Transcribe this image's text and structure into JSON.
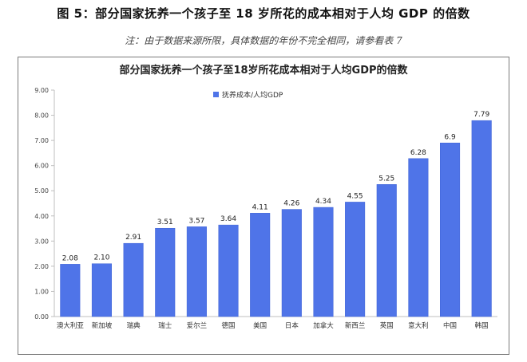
{
  "figure": {
    "title": "图 5：部分国家抚养一个孩子至 18 岁所花的成本相对于人均 GDP 的倍数",
    "note": "注：由于数据来源所限，具体数据的年份不完全相同，请参看表 7"
  },
  "chart_data": {
    "type": "bar",
    "title": "部分国家抚养一个孩子至18岁所花成本相对于人均GDP的倍数",
    "categories": [
      "澳大利亚",
      "新加坡",
      "瑞典",
      "瑞士",
      "爱尔兰",
      "德国",
      "美国",
      "日本",
      "加拿大",
      "新西兰",
      "英国",
      "意大利",
      "中国",
      "韩国"
    ],
    "series": [
      {
        "name": "抚养成本/人均GDP",
        "values": [
          2.08,
          2.1,
          2.91,
          3.51,
          3.57,
          3.64,
          4.11,
          4.26,
          4.34,
          4.55,
          5.25,
          6.28,
          6.9,
          7.79
        ],
        "labels": [
          "2.08",
          "2.10",
          "2.91",
          "3.51",
          "3.57",
          "3.64",
          "4.11",
          "4.26",
          "4.34",
          "4.55",
          "5.25",
          "6.28",
          "6.9",
          "7.79"
        ]
      }
    ],
    "yticks": [
      "0.00",
      "1.00",
      "2.00",
      "3.00",
      "4.00",
      "5.00",
      "6.00",
      "7.00",
      "8.00",
      "9.00"
    ],
    "ylim": [
      0,
      9
    ],
    "grid": false,
    "legend_position": "top-center",
    "colors": {
      "bar": "#4f74e8",
      "bar_edge": "#3f63d6",
      "axis": "#bfbfbf"
    }
  }
}
